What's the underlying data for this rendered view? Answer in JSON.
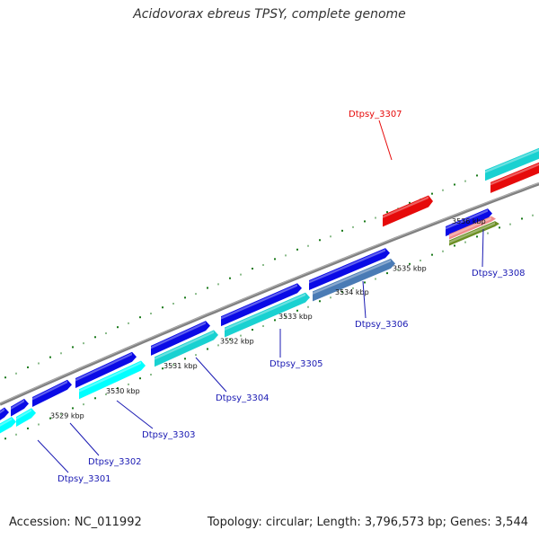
{
  "title": "Acidovorax ebreus TPSY, complete genome",
  "accession": "Accession: NC_011992",
  "stats": "Topology: circular; Length: 3,796,573 bp; Genes: 3,544",
  "colors": {
    "backbone": "#808080",
    "tick": "#1a7a1a",
    "blue": "#0a0ae6",
    "cyan": "#19d1d1",
    "cyan_bright": "#00ffff",
    "steel": "#4a7bb5",
    "red": "#e60a0a",
    "pink": "#f08a8a",
    "olive": "#6b8e23",
    "label_blue": "#1a1ab3",
    "label_red": "#e60a0a"
  },
  "scale_ticks": [
    "3529 kbp",
    "3530 kbp",
    "3531 kbp",
    "3532 kbp",
    "3533 kbp",
    "3534 kbp",
    "3535 kbp",
    "3536 kbp"
  ],
  "gene_labels": [
    "Dtpsy_3301",
    "Dtpsy_3302",
    "Dtpsy_3303",
    "Dtpsy_3304",
    "Dtpsy_3305",
    "Dtpsy_3306",
    "Dtpsy_3307",
    "Dtpsy_3308"
  ]
}
